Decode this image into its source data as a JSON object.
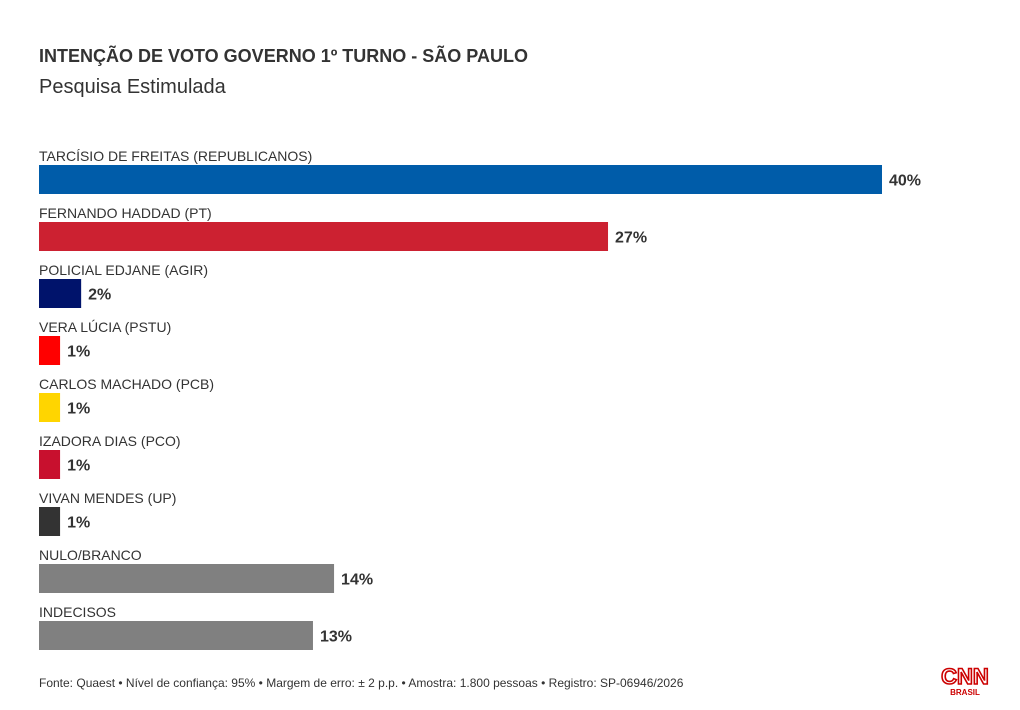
{
  "chart_data": {
    "type": "bar",
    "orientation": "horizontal",
    "title": "INTENÇÃO DE VOTO GOVERNO 1º TURNO - SÃO PAULO",
    "subtitle": "Pesquisa Estimulada",
    "value_suffix": "%",
    "xlim": [
      0,
      40
    ],
    "grid": false,
    "legend": "none",
    "categories": [
      "TARCÍSIO DE FREITAS (REPUBLICANOS)",
      "FERNANDO HADDAD (PT)",
      "POLICIAL EDJANE (AGIR)",
      "VERA LÚCIA (PSTU)",
      "CARLOS MACHADO (PCB)",
      "IZADORA DIAS (PCO)",
      "VIVAN MENDES (UP)",
      "NULO/BRANCO",
      "INDECISOS"
    ],
    "values": [
      40,
      27,
      2,
      1,
      1,
      1,
      1,
      14,
      13
    ],
    "colors": [
      "#005ca9",
      "#cc2131",
      "#00136b",
      "#ff0000",
      "#ffd500",
      "#c8102e",
      "#333333",
      "#808080",
      "#808080"
    ]
  },
  "footer": {
    "source": "Fonte: Quaest • Nível de confiança: 95% • Margem de erro: ± 2 p.p. • Amostra: 1.800 pessoas • Registro: SP-06946/2026"
  },
  "logo": {
    "brand": "CNN",
    "sub": "BRASIL",
    "color": "#cc0000"
  }
}
